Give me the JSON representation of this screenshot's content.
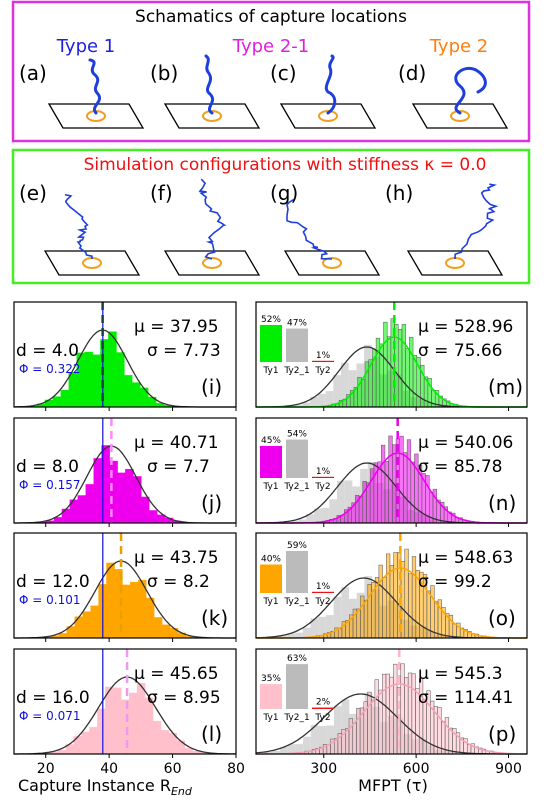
{
  "top_box": {
    "title": "Schamatics of capture locations",
    "panels": [
      {
        "letter": "(a)",
        "type_label": "Type 1",
        "type_color": "#1f1fdd"
      },
      {
        "letter": "(b)",
        "type_label": "",
        "type_color": "#1f1fdd"
      },
      {
        "letter": "(c)",
        "type_label": "Type 2-1",
        "type_color": "#e020e0"
      },
      {
        "letter": "(d)",
        "type_label": "Type 2",
        "type_color": "#ff7f0e"
      }
    ]
  },
  "mid_box": {
    "title": "Simulation configurations with stiffness κ = 0.0",
    "title_color": "#ee1111",
    "letters": [
      "(e)",
      "(f)",
      "(g)",
      "(h)"
    ]
  },
  "colors": {
    "magenta_frame": "#e030e0",
    "green_frame": "#44ee22",
    "polymer": "#1f3fdd",
    "ring": "#f0a020",
    "blue_text": "#1010dd"
  },
  "rows": [
    {
      "color": "#00ee00",
      "left": {
        "letter": "(i)",
        "mu": "μ = 37.95",
        "sigma": "σ = 7.73",
        "d": "d = 4.0",
        "phi": "Φ = 0.322",
        "mean": 37.95,
        "sd": 7.73,
        "mean_line_color": "#1a4040"
      },
      "right": {
        "letter": "(m)",
        "mu": "μ = 528.96",
        "sigma": "σ = 75.66",
        "mean": 528.96,
        "sd": 75.66,
        "ty2_mean": 440,
        "ty2_sd": 90,
        "bars": [
          {
            "pct": "52%",
            "label": "Ty1",
            "value": 52
          },
          {
            "pct": "47%",
            "label": "Ty2_1",
            "value": 47
          },
          {
            "pct": "1%",
            "label": "Ty2",
            "value": 1
          }
        ]
      }
    },
    {
      "color": "#ee00ee",
      "left": {
        "letter": "(j)",
        "mu": "μ = 40.71",
        "sigma": "σ = 7.7",
        "d": "d = 8.0",
        "phi": "Φ = 0.157",
        "mean": 40.71,
        "sd": 7.7,
        "mean_line_color": "#ff88ff"
      },
      "right": {
        "letter": "(n)",
        "mu": "μ = 540.06",
        "sigma": "σ = 85.78",
        "mean": 540.06,
        "sd": 85.78,
        "ty2_mean": 440,
        "ty2_sd": 95,
        "bars": [
          {
            "pct": "45%",
            "label": "Ty1",
            "value": 45
          },
          {
            "pct": "54%",
            "label": "Ty2_1",
            "value": 54
          },
          {
            "pct": "1%",
            "label": "Ty2",
            "value": 1
          }
        ]
      }
    },
    {
      "color": "#ffa500",
      "left": {
        "letter": "(k)",
        "mu": "μ = 43.75",
        "sigma": "σ = 8.2",
        "d": "d = 12.0",
        "phi": "Φ = 0.101",
        "mean": 43.75,
        "sd": 8.2,
        "mean_line_color": "#e8a000"
      },
      "right": {
        "letter": "(o)",
        "mu": "μ = 548.63",
        "sigma": "σ = 99.2",
        "mean": 548.63,
        "sd": 99.2,
        "ty2_mean": 430,
        "ty2_sd": 105,
        "bars": [
          {
            "pct": "40%",
            "label": "Ty1",
            "value": 40
          },
          {
            "pct": "59%",
            "label": "Ty2_1",
            "value": 59
          },
          {
            "pct": "1%",
            "label": "Ty2",
            "value": 1
          }
        ]
      }
    },
    {
      "color": "#ffc0cb",
      "left": {
        "letter": "(l)",
        "mu": "μ = 45.65",
        "sigma": "σ = 8.95",
        "d": "d = 16.0",
        "phi": "Φ = 0.071",
        "mean": 45.65,
        "sd": 8.95,
        "mean_line_color": "#ee99ee"
      },
      "right": {
        "letter": "(p)",
        "mu": "μ = 545.3",
        "sigma": "σ = 114.41",
        "mean": 545.3,
        "sd": 114.41,
        "ty2_mean": 420,
        "ty2_sd": 120,
        "bars": [
          {
            "pct": "35%",
            "label": "Ty1",
            "value": 35
          },
          {
            "pct": "63%",
            "label": "Ty2_1",
            "value": 63
          },
          {
            "pct": "2%",
            "label": "Ty2",
            "value": 2
          }
        ]
      }
    }
  ],
  "left_axis": {
    "ticks": [
      "20",
      "40",
      "60",
      "80"
    ],
    "tick_values": [
      20,
      40,
      60,
      80
    ],
    "xlim": [
      10,
      80
    ],
    "blue_line_value": 38,
    "xlabel": "Capture Instance R",
    "xlabel_sub": "End"
  },
  "right_axis": {
    "ticks": [
      "300",
      "600",
      "900"
    ],
    "tick_values": [
      300,
      600,
      900
    ],
    "xlim": [
      80,
      960
    ],
    "xlabel": "MFPT (τ)"
  },
  "chart_data": {
    "type": "bar",
    "title": "",
    "xlabel": "Capture Instance R_End / MFPT (τ)",
    "series": [
      {
        "name": "d = 4.0",
        "values": [
          52,
          47,
          1
        ]
      },
      {
        "name": "d = 8.0",
        "values": [
          45,
          54,
          1
        ]
      },
      {
        "name": "d = 12.0",
        "values": [
          40,
          59,
          1
        ]
      },
      {
        "name": "d = 16.0",
        "values": [
          35,
          63,
          2
        ]
      }
    ],
    "categories": [
      "Ty1",
      "Ty2_1",
      "Ty2"
    ]
  }
}
